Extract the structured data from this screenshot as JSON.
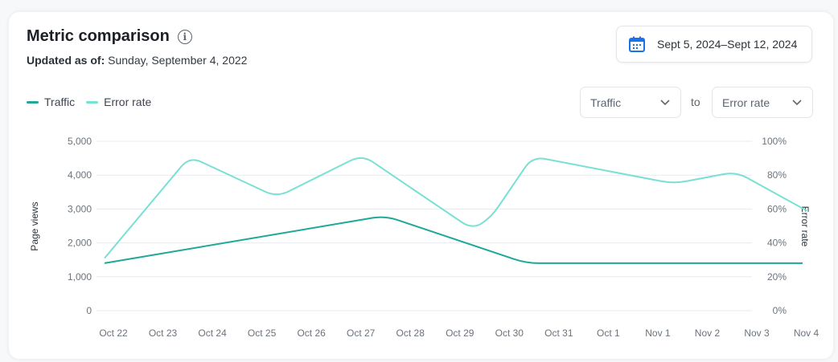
{
  "header": {
    "title": "Metric comparison",
    "info_icon": "info-circle-icon",
    "updated_label": "Updated as of:",
    "updated_value": "Sunday, September 4, 2022"
  },
  "date_range": {
    "icon": "calendar-icon",
    "label": "Sept 5, 2024–Sept 12, 2024",
    "icon_color": "#1a73e8"
  },
  "compare": {
    "left": "Traffic",
    "connector": "to",
    "right": "Error rate"
  },
  "legend": [
    {
      "label": "Traffic",
      "color": "#1fa898"
    },
    {
      "label": "Error rate",
      "color": "#78e0d4"
    }
  ],
  "chart_data": {
    "type": "line",
    "categories": [
      "Oct 22",
      "Oct 23",
      "Oct 24",
      "Oct 25",
      "Oct 26",
      "Oct 27",
      "Oct 28",
      "Oct 29",
      "Oct 30",
      "Oct 31",
      "Oct 1",
      "Nov 1",
      "Nov 2",
      "Nov 3",
      "Nov 4"
    ],
    "y_left": {
      "label": "Page views",
      "ticks": [
        "0",
        "1,000",
        "2,000",
        "3,000",
        "4,000",
        "5,000"
      ],
      "range": [
        0,
        5000
      ]
    },
    "y_right": {
      "label": "Error rate",
      "ticks": [
        "0%",
        "20%",
        "40%",
        "60%",
        "80%",
        "100%"
      ],
      "range": [
        0,
        100
      ]
    },
    "grid": true,
    "legend_placement": "top-left",
    "series": [
      {
        "name": "Traffic",
        "axis": "left",
        "color": "#1fa898",
        "points": [
          {
            "date": "Oct 22",
            "hour": 0,
            "value": 1400
          },
          {
            "date": "Oct 27",
            "hour": 15,
            "value": 2800
          },
          {
            "date": "Oct 30",
            "hour": 11,
            "value": 1400
          },
          {
            "date": "Nov 4",
            "hour": 0,
            "value": 1400
          }
        ]
      },
      {
        "name": "Error rate",
        "axis": "right",
        "color": "#78e0d4",
        "points": [
          {
            "date": "Oct 22",
            "hour": 0,
            "value": 31
          },
          {
            "date": "Oct 23",
            "hour": 17,
            "value": 91
          },
          {
            "date": "Oct 25",
            "hour": 11,
            "value": 67
          },
          {
            "date": "Oct 27",
            "hour": 4,
            "value": 92
          },
          {
            "date": "Oct 29",
            "hour": 9,
            "value": 48
          },
          {
            "date": "Oct 29",
            "hour": 18,
            "value": 55
          },
          {
            "date": "Oct 30",
            "hour": 14,
            "value": 91
          },
          {
            "date": "Nov 1",
            "hour": 10,
            "value": 75
          },
          {
            "date": "Nov 2",
            "hour": 16,
            "value": 82
          },
          {
            "date": "Nov 4",
            "hour": 2,
            "value": 59
          }
        ]
      }
    ]
  }
}
